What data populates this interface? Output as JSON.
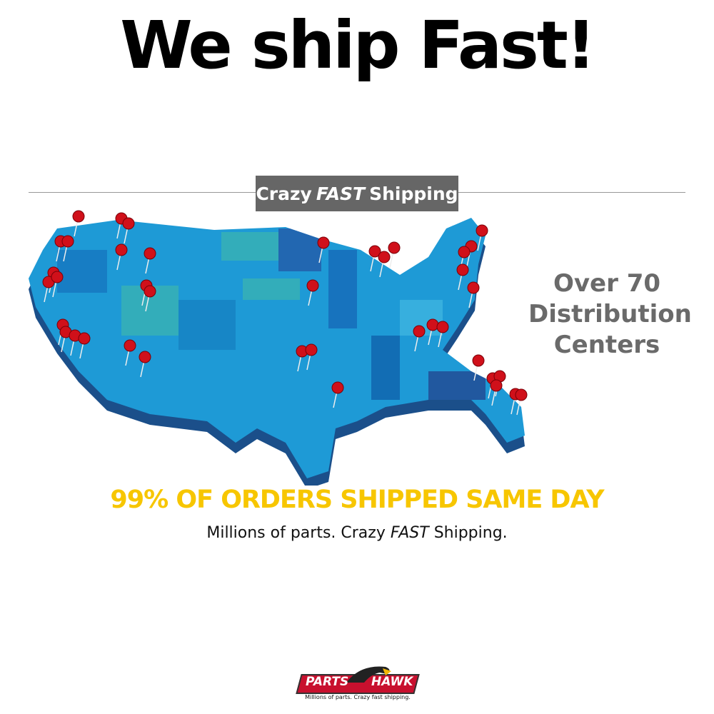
{
  "headline": "We ship Fast!",
  "banner": {
    "pre": "Crazy",
    "emph": "FAST",
    "post": "Shipping"
  },
  "side_text": [
    "Over 70",
    "Distribution",
    "Centers"
  ],
  "tagline": "99% OF ORDERS SHIPPED SAME DAY",
  "subline": {
    "pre": "Millions of parts. Crazy",
    "emph": "FAST",
    "post": "Shipping."
  },
  "logo": {
    "left": "PARTS",
    "right": "HAWK",
    "tag": "Millions of parts. Crazy fast shipping."
  },
  "colors": {
    "map": "#1e9ad6",
    "pin": "#d0101a",
    "tagline": "#f7c600",
    "banner": "#666666"
  }
}
